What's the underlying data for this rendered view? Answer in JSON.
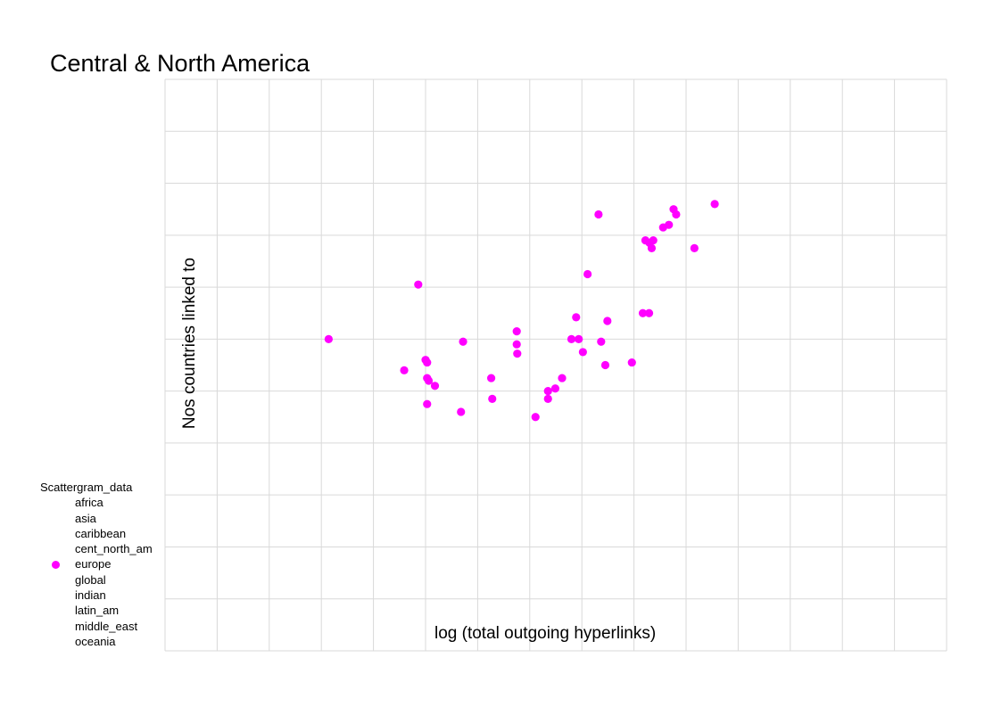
{
  "chart_data": {
    "type": "scatter",
    "title": "Central & North America",
    "xlabel": "log (total outgoing hyperlinks)",
    "ylabel": "Nos countries linked to",
    "grid": true,
    "legend": {
      "title": "Scattergram_data",
      "position": "bottom-left",
      "entries": [
        "africa",
        "asia",
        "caribbean",
        "cent_north_am",
        "europe",
        "global",
        "indian",
        "latin_am",
        "middle_east",
        "oceania"
      ],
      "shown_marker": "europe"
    },
    "series": [
      {
        "name": "europe",
        "color": "#ff00ff",
        "points": [
          [
            3.14,
            6.0
          ],
          [
            4.59,
            5.4
          ],
          [
            4.86,
            7.05
          ],
          [
            5.0,
            5.6
          ],
          [
            5.03,
            4.75
          ],
          [
            5.03,
            5.55
          ],
          [
            5.03,
            5.25
          ],
          [
            5.06,
            5.2
          ],
          [
            5.18,
            5.1
          ],
          [
            5.68,
            4.6
          ],
          [
            5.72,
            5.95
          ],
          [
            6.26,
            5.25
          ],
          [
            6.28,
            4.85
          ],
          [
            6.75,
            6.15
          ],
          [
            6.75,
            5.9
          ],
          [
            6.76,
            5.72
          ],
          [
            7.11,
            4.5
          ],
          [
            7.35,
            4.85
          ],
          [
            7.35,
            5.0
          ],
          [
            7.49,
            5.05
          ],
          [
            7.62,
            5.25
          ],
          [
            7.8,
            6.0
          ],
          [
            7.89,
            6.42
          ],
          [
            7.94,
            6.0
          ],
          [
            8.02,
            5.75
          ],
          [
            8.11,
            7.25
          ],
          [
            8.32,
            8.4
          ],
          [
            8.37,
            5.95
          ],
          [
            8.45,
            5.5
          ],
          [
            8.49,
            6.35
          ],
          [
            8.96,
            5.55
          ],
          [
            9.17,
            6.5
          ],
          [
            9.22,
            7.9
          ],
          [
            9.29,
            6.5
          ],
          [
            9.3,
            7.85
          ],
          [
            9.34,
            7.75
          ],
          [
            9.37,
            7.9
          ],
          [
            9.56,
            8.15
          ],
          [
            9.67,
            8.2
          ],
          [
            9.76,
            8.5
          ],
          [
            9.81,
            8.4
          ],
          [
            10.16,
            7.75
          ],
          [
            10.55,
            8.6
          ]
        ]
      }
    ]
  }
}
